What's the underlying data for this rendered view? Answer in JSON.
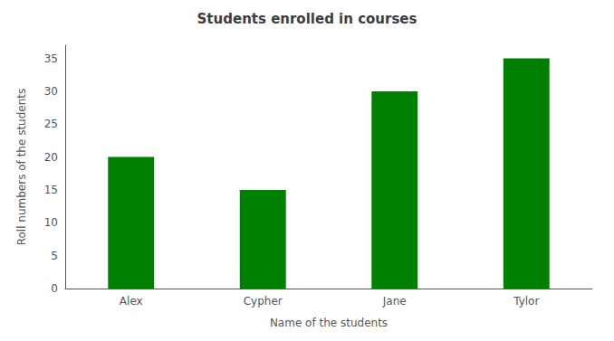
{
  "chart_data": {
    "type": "bar",
    "title": "Students enrolled in courses",
    "xlabel": "Name of the students",
    "ylabel": "Roll numbers of the students",
    "categories": [
      "Alex",
      "Cypher",
      "Jane",
      "Tylor"
    ],
    "values": [
      20,
      15,
      30,
      35
    ],
    "color": "#008000",
    "ylim": [
      0,
      37
    ],
    "yticks": [
      0,
      5,
      10,
      15,
      20,
      25,
      30,
      35
    ],
    "grid": false
  }
}
